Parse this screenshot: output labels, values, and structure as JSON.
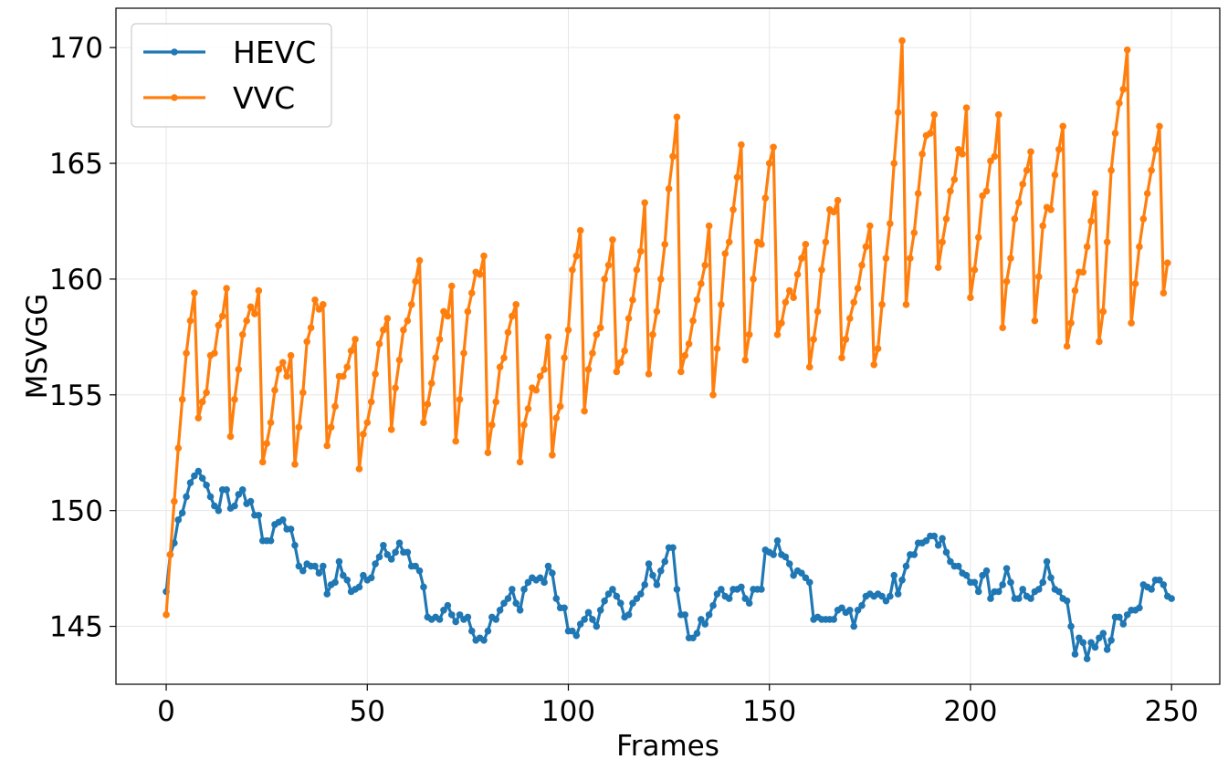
{
  "chart_data": {
    "type": "line",
    "title": "",
    "xlabel": "Frames",
    "ylabel": "MSVGG",
    "xlim": [
      -12.5,
      262
    ],
    "ylim": [
      142.5,
      171.7
    ],
    "xticks": [
      0,
      50,
      100,
      150,
      200,
      250
    ],
    "yticks": [
      145,
      150,
      155,
      160,
      165,
      170
    ],
    "grid": true,
    "legend_position": "top-left",
    "x_start": 0,
    "x_step": 1,
    "series": [
      {
        "name": "HEVC",
        "color": "#1f77b4",
        "values": [
          146.5,
          148.1,
          148.6,
          149.6,
          149.9,
          150.6,
          151.2,
          151.5,
          151.7,
          151.4,
          151.1,
          150.6,
          150.2,
          150.0,
          150.9,
          150.9,
          150.1,
          150.2,
          150.7,
          150.9,
          150.3,
          150.4,
          149.8,
          149.8,
          148.7,
          148.7,
          148.7,
          149.4,
          149.5,
          149.6,
          149.2,
          149.2,
          148.5,
          147.6,
          147.4,
          147.7,
          147.6,
          147.6,
          147.3,
          147.6,
          146.4,
          146.8,
          146.9,
          147.8,
          147.2,
          147.0,
          146.5,
          146.6,
          146.7,
          147.2,
          147.0,
          147.1,
          147.7,
          148.0,
          148.5,
          148.1,
          147.9,
          148.2,
          148.6,
          148.2,
          148.2,
          147.6,
          147.6,
          147.4,
          146.7,
          145.4,
          145.3,
          145.4,
          145.3,
          145.7,
          145.9,
          145.5,
          145.2,
          145.5,
          145.3,
          145.4,
          144.8,
          144.4,
          144.5,
          144.4,
          144.8,
          145.4,
          145.3,
          145.7,
          146.0,
          146.2,
          146.6,
          146.0,
          145.7,
          146.6,
          146.9,
          147.1,
          147.0,
          147.1,
          146.9,
          147.6,
          147.3,
          146.2,
          145.8,
          145.8,
          144.8,
          144.8,
          144.6,
          145.1,
          145.3,
          145.6,
          145.3,
          145.0,
          145.7,
          146.1,
          146.4,
          146.6,
          146.3,
          146.0,
          145.4,
          145.5,
          146.0,
          146.2,
          146.4,
          146.8,
          147.7,
          147.2,
          146.8,
          147.4,
          147.8,
          148.4,
          148.4,
          146.6,
          145.5,
          145.5,
          144.5,
          144.5,
          144.7,
          145.3,
          145.1,
          145.5,
          145.9,
          146.4,
          146.6,
          146.3,
          146.2,
          146.6,
          146.6,
          146.7,
          146.2,
          146.0,
          146.6,
          146.6,
          146.6,
          148.3,
          148.2,
          148.1,
          148.7,
          148.1,
          148.0,
          147.7,
          147.2,
          147.4,
          147.3,
          147.1,
          146.9,
          145.3,
          145.4,
          145.3,
          145.3,
          145.3,
          145.3,
          145.7,
          145.8,
          145.6,
          145.7,
          145.0,
          145.7,
          145.9,
          146.3,
          146.4,
          146.3,
          146.4,
          146.3,
          146.1,
          146.3,
          147.2,
          146.4,
          147.0,
          147.6,
          148.1,
          148.1,
          148.6,
          148.6,
          148.7,
          148.9,
          148.9,
          148.5,
          148.8,
          148.2,
          147.8,
          147.6,
          147.6,
          147.3,
          147.2,
          146.9,
          146.9,
          146.5,
          147.2,
          147.4,
          146.2,
          146.5,
          146.5,
          146.8,
          147.5,
          146.9,
          146.2,
          146.2,
          146.6,
          146.3,
          146.2,
          146.5,
          146.6,
          146.9,
          147.8,
          147.1,
          146.6,
          146.5,
          146.2,
          146.1,
          145.0,
          143.8,
          144.5,
          144.3,
          143.6,
          144.3,
          144.1,
          144.5,
          144.7,
          144.0,
          144.4,
          145.4,
          145.4,
          145.1,
          145.5,
          145.7,
          145.7,
          145.8,
          146.8,
          146.7,
          146.6,
          147.0,
          147.0,
          146.8,
          146.3,
          146.2
        ]
      },
      {
        "name": "VVC",
        "color": "#ff7f0e",
        "values": [
          145.5,
          148.1,
          150.4,
          152.7,
          154.8,
          156.8,
          158.2,
          159.4,
          154.0,
          154.7,
          155.1,
          156.7,
          156.8,
          158.0,
          158.4,
          159.6,
          153.2,
          154.8,
          156.1,
          157.6,
          158.2,
          158.8,
          158.5,
          159.5,
          152.1,
          152.9,
          153.8,
          155.2,
          156.1,
          156.4,
          155.8,
          156.7,
          152.0,
          153.6,
          155.1,
          157.3,
          157.9,
          159.1,
          158.7,
          158.9,
          152.8,
          153.6,
          154.5,
          155.8,
          155.8,
          156.2,
          156.9,
          157.4,
          151.8,
          153.3,
          153.8,
          154.7,
          155.9,
          157.2,
          157.8,
          158.3,
          153.5,
          155.3,
          156.5,
          157.8,
          158.2,
          158.9,
          159.9,
          160.8,
          153.8,
          154.6,
          155.5,
          156.6,
          157.4,
          158.6,
          158.4,
          159.7,
          153.0,
          154.8,
          156.8,
          158.6,
          159.4,
          160.3,
          160.2,
          161.0,
          152.5,
          153.7,
          154.7,
          156.2,
          156.6,
          157.7,
          158.4,
          158.9,
          152.1,
          153.7,
          154.4,
          155.3,
          155.2,
          155.8,
          156.1,
          157.5,
          152.4,
          154.0,
          154.5,
          156.6,
          157.8,
          160.4,
          161.0,
          162.1,
          154.3,
          156.1,
          156.8,
          157.6,
          157.9,
          160.0,
          160.6,
          161.7,
          156.0,
          156.4,
          156.9,
          158.3,
          159.1,
          160.4,
          161.2,
          163.3,
          155.9,
          157.6,
          158.6,
          160.0,
          161.5,
          163.9,
          165.3,
          167.0,
          156.0,
          156.7,
          157.2,
          158.2,
          159.1,
          159.8,
          160.6,
          162.3,
          155.0,
          157.0,
          158.9,
          161.1,
          161.6,
          163.0,
          164.4,
          165.8,
          156.5,
          157.6,
          160.0,
          161.6,
          161.5,
          163.5,
          165.0,
          165.7,
          157.6,
          158.1,
          159.0,
          159.5,
          159.2,
          160.2,
          160.9,
          161.5,
          156.2,
          157.4,
          158.6,
          160.4,
          161.6,
          163.0,
          162.9,
          163.4,
          156.6,
          157.4,
          158.3,
          159.0,
          159.6,
          160.6,
          161.4,
          162.3,
          156.3,
          157.0,
          158.9,
          160.9,
          162.4,
          165.0,
          167.2,
          170.3,
          158.9,
          160.9,
          162.0,
          163.7,
          165.4,
          166.2,
          166.3,
          167.1,
          160.5,
          161.6,
          162.6,
          163.8,
          164.3,
          165.6,
          165.4,
          167.4,
          159.2,
          160.4,
          161.8,
          163.6,
          163.8,
          165.1,
          165.3,
          167.1,
          157.9,
          159.9,
          160.9,
          162.6,
          163.3,
          164.1,
          164.7,
          165.5,
          158.2,
          160.1,
          162.3,
          163.1,
          163.0,
          164.5,
          165.6,
          166.6,
          157.1,
          158.1,
          159.5,
          160.3,
          160.3,
          161.4,
          162.5,
          163.7,
          157.3,
          158.6,
          161.6,
          164.7,
          166.3,
          167.6,
          168.2,
          169.9,
          158.1,
          159.8,
          161.4,
          162.6,
          163.7,
          164.7,
          165.6,
          166.6,
          159.4,
          160.7
        ]
      }
    ]
  }
}
